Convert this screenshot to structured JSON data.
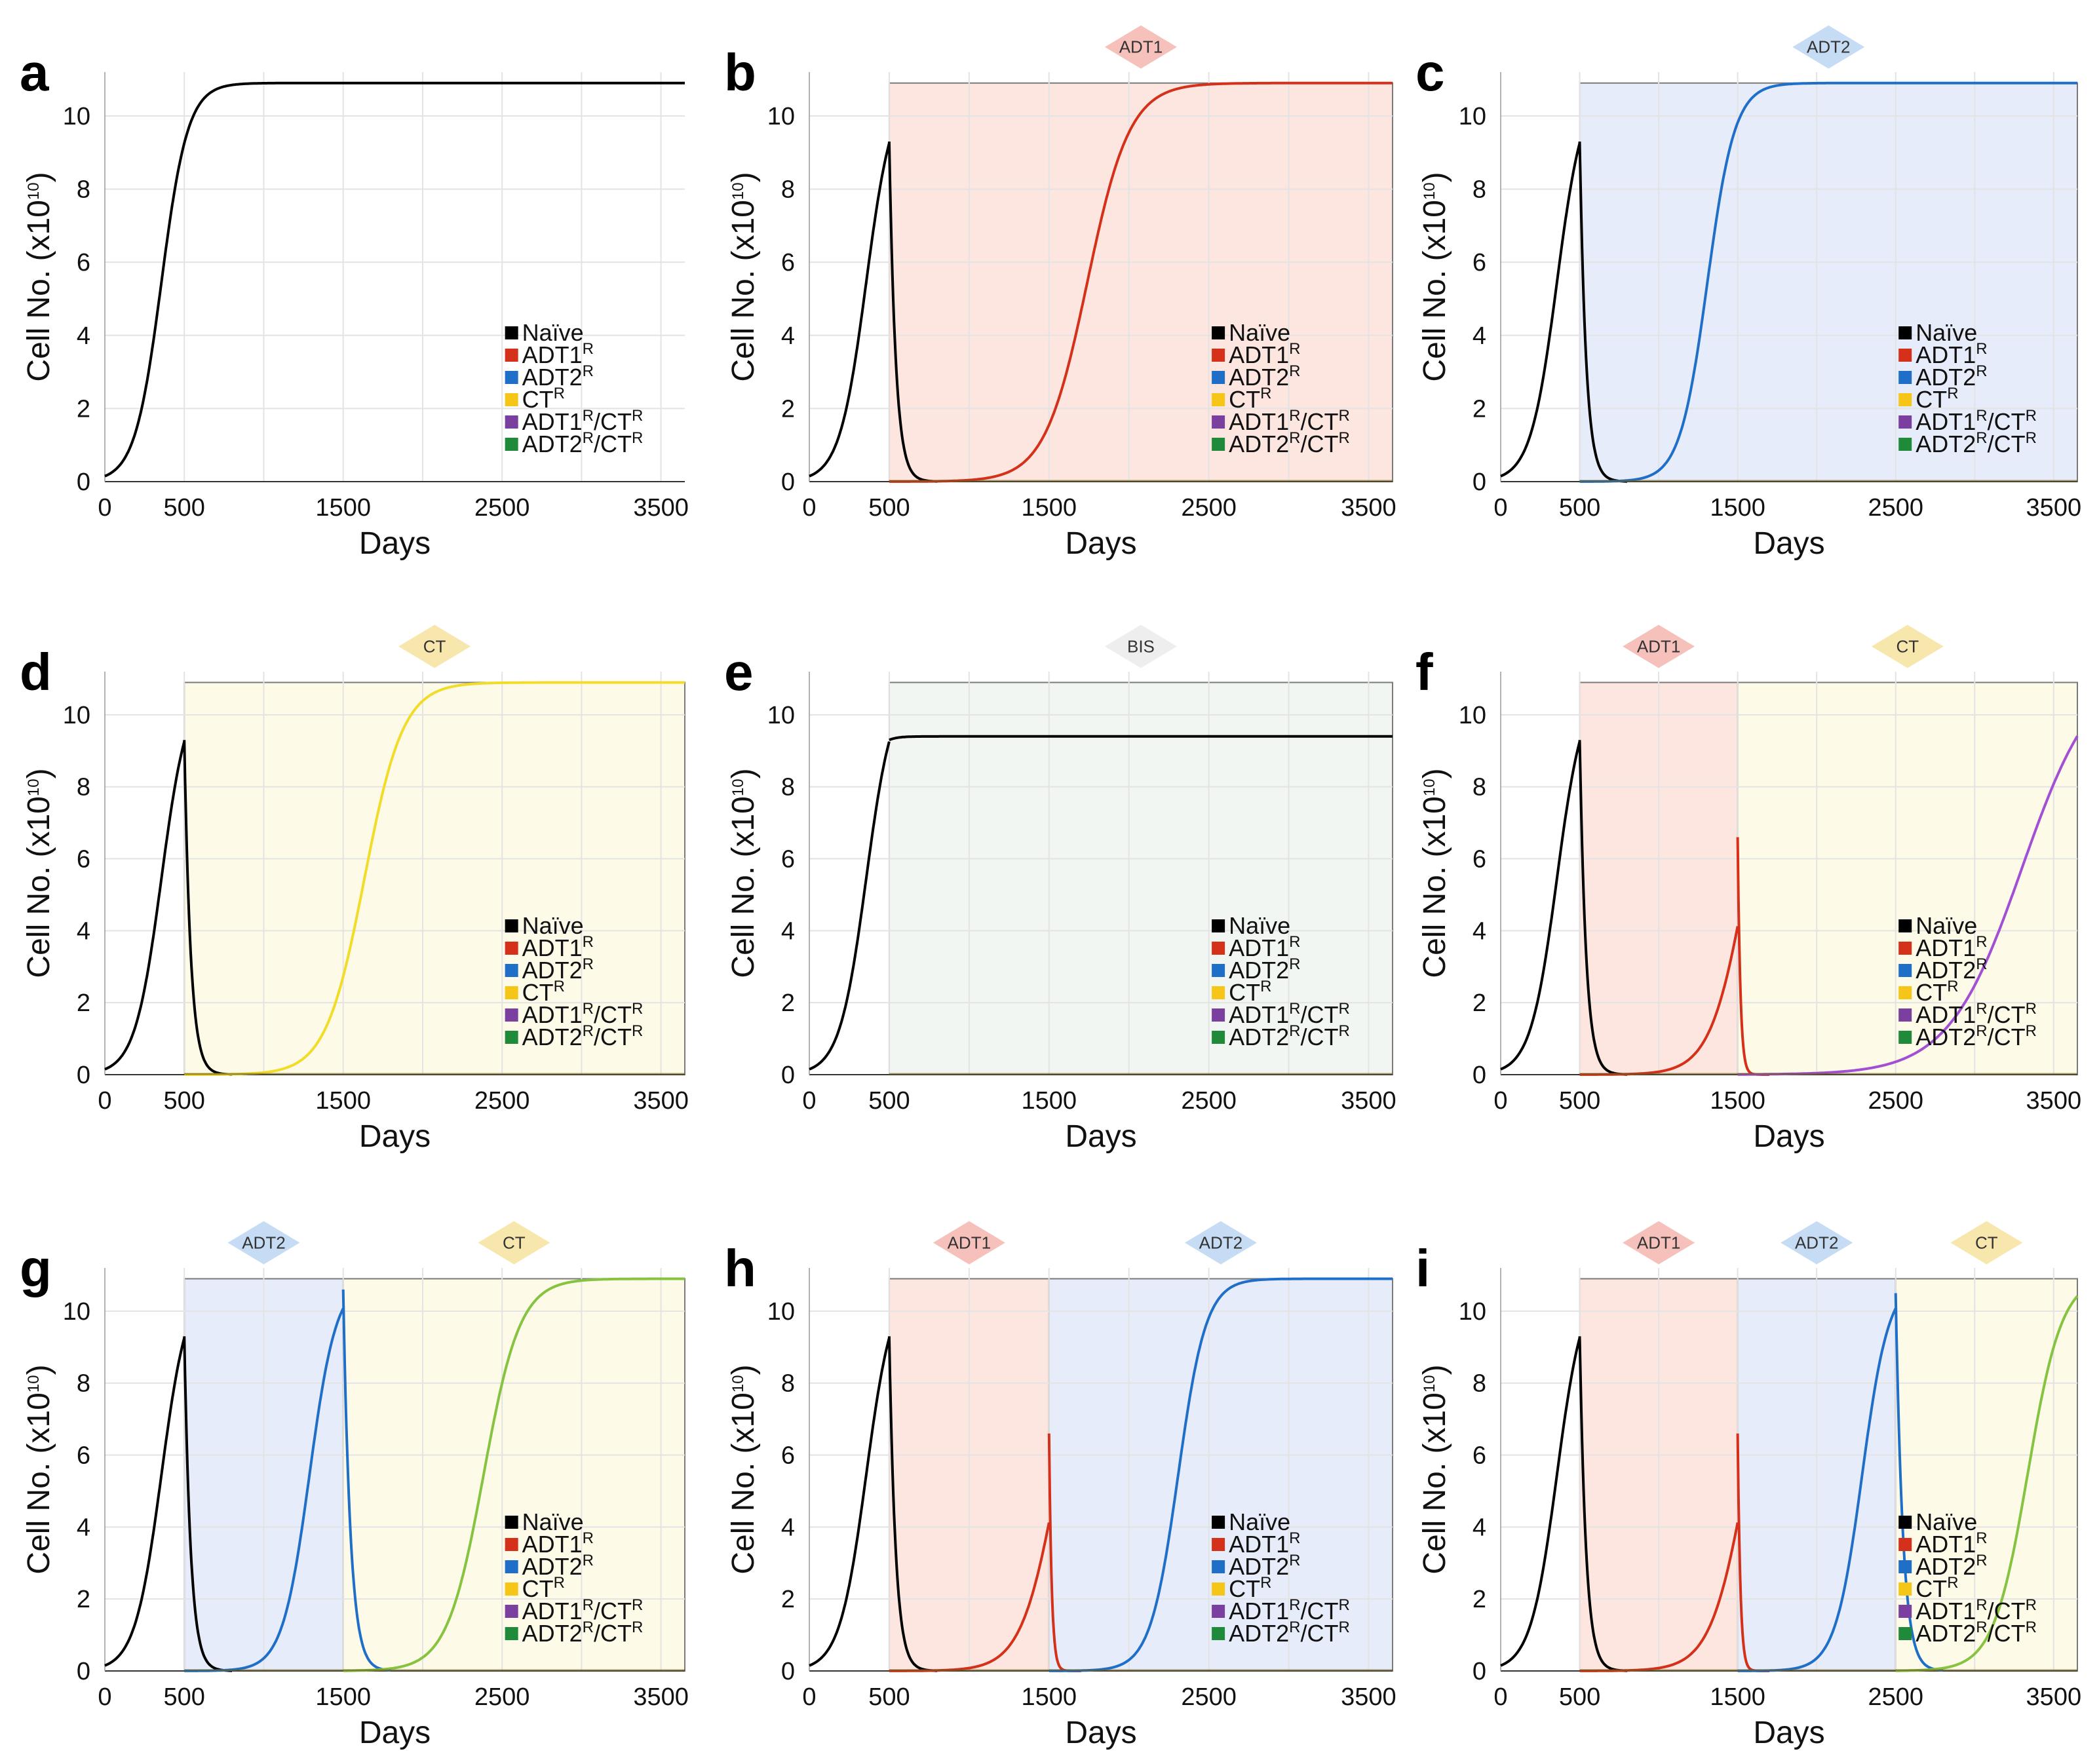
{
  "figure": {
    "background": "#ffffff"
  },
  "series_colors": {
    "naive": "#000000",
    "adt1r": "#d4301a",
    "adt2r": "#1f6fc9",
    "ctr": "#f2dc2a",
    "adt1r_ctr": "#a34fd4",
    "adt2r_ctr": "#86c340"
  },
  "legend_markers": {
    "naive": "#000000",
    "adt1r": "#d4301a",
    "adt2r": "#1f6fc9",
    "ctr": "#f5c518",
    "adt1r_ctr": "#7b3fa0",
    "adt2r_ctr": "#1e8a3a"
  },
  "phase_fills": {
    "ADT1": "#fde6df",
    "ADT2": "#e6ecf9",
    "CT": "#fdfbe8",
    "BIS": "#f2f6f3"
  },
  "badge_colors": {
    "ADT1": "#f7c1bb",
    "ADT2": "#c6dcf5",
    "CT": "#f8e7ad",
    "BIS": "#eeeeee"
  },
  "legend": {
    "entries": [
      {
        "base": "Naïve",
        "sup": "",
        "mid": "",
        "sup2": "",
        "key": "naive"
      },
      {
        "base": "ADT1",
        "sup": "R",
        "mid": "",
        "sup2": "",
        "key": "adt1r"
      },
      {
        "base": "ADT2",
        "sup": "R",
        "mid": "",
        "sup2": "",
        "key": "adt2r"
      },
      {
        "base": "CT",
        "sup": "R",
        "mid": "",
        "sup2": "",
        "key": "ctr"
      },
      {
        "base": "ADT1",
        "sup": "R",
        "mid": "/CT",
        "sup2": "R",
        "key": "adt1r_ctr"
      },
      {
        "base": "ADT2",
        "sup": "R",
        "mid": "/CT",
        "sup2": "R",
        "key": "adt2r_ctr"
      }
    ]
  },
  "chart_data": [
    {
      "panel": "a",
      "type": "line",
      "xlabel": "Days",
      "ylabel": "Cell No. (x10",
      "ylabel_sup": "10",
      "ylabel_end": ")",
      "x_ticks": [
        0,
        500,
        1500,
        2500,
        3500
      ],
      "y_ticks": [
        0,
        2,
        4,
        6,
        8,
        10
      ],
      "xlim": [
        0,
        3650
      ],
      "ylim": [
        0,
        11.2
      ],
      "phases": [],
      "series": [
        {
          "name": "Naïve",
          "color_key": "naive",
          "segments": [
            {
              "type": "logistic",
              "t0": 0,
              "t1": 3650,
              "y0": 0.15,
              "r": 0.012,
              "K": 10.9
            }
          ]
        }
      ]
    },
    {
      "panel": "b",
      "type": "line",
      "xlabel": "Days",
      "ylabel": "Cell No. (x10",
      "ylabel_sup": "10",
      "ylabel_end": ")",
      "x_ticks": [
        0,
        500,
        1500,
        2500,
        3500
      ],
      "y_ticks": [
        0,
        2,
        4,
        6,
        8,
        10
      ],
      "xlim": [
        0,
        3650
      ],
      "ylim": [
        0,
        11.2
      ],
      "phases": [
        {
          "label": "ADT1",
          "start": 500,
          "end": 3650
        }
      ],
      "series": [
        {
          "name": "Naïve",
          "color_key": "naive",
          "segments": [
            {
              "type": "logistic",
              "t0": 0,
              "t1": 500,
              "y0": 0.15,
              "r": 0.012,
              "K": 10.9
            },
            {
              "type": "decay",
              "t0": 500,
              "t1": 800,
              "y0": 9.3,
              "d": 0.025
            }
          ]
        },
        {
          "name": "ADT1R",
          "color_key": "adt1r",
          "segments": [
            {
              "type": "logistic",
              "t0": 500,
              "t1": 3650,
              "y0": 0.001,
              "r": 0.0075,
              "K": 10.9
            }
          ]
        }
      ]
    },
    {
      "panel": "c",
      "type": "line",
      "xlabel": "Days",
      "ylabel": "Cell No. (x10",
      "ylabel_sup": "10",
      "ylabel_end": ")",
      "x_ticks": [
        0,
        500,
        1500,
        2500,
        3500
      ],
      "y_ticks": [
        0,
        2,
        4,
        6,
        8,
        10
      ],
      "xlim": [
        0,
        3650
      ],
      "ylim": [
        0,
        11.2
      ],
      "phases": [
        {
          "label": "ADT2",
          "start": 500,
          "end": 3650
        }
      ],
      "series": [
        {
          "name": "Naïve",
          "color_key": "naive",
          "segments": [
            {
              "type": "logistic",
              "t0": 0,
              "t1": 500,
              "y0": 0.15,
              "r": 0.012,
              "K": 10.9
            },
            {
              "type": "decay",
              "t0": 500,
              "t1": 800,
              "y0": 9.3,
              "d": 0.025
            }
          ]
        },
        {
          "name": "ADT2R",
          "color_key": "adt2r",
          "segments": [
            {
              "type": "logistic",
              "t0": 500,
              "t1": 3650,
              "y0": 0.001,
              "r": 0.0115,
              "K": 10.9
            }
          ]
        }
      ]
    },
    {
      "panel": "d",
      "type": "line",
      "xlabel": "Days",
      "ylabel": "Cell No. (x10",
      "ylabel_sup": "10",
      "ylabel_end": ")",
      "x_ticks": [
        0,
        500,
        1500,
        2500,
        3500
      ],
      "y_ticks": [
        0,
        2,
        4,
        6,
        8,
        10
      ],
      "xlim": [
        0,
        3650
      ],
      "ylim": [
        0,
        11.2
      ],
      "phases": [
        {
          "label": "CT",
          "start": 500,
          "end": 3650
        }
      ],
      "series": [
        {
          "name": "Naïve",
          "color_key": "naive",
          "segments": [
            {
              "type": "logistic",
              "t0": 0,
              "t1": 500,
              "y0": 0.15,
              "r": 0.012,
              "K": 10.9
            },
            {
              "type": "decay",
              "t0": 500,
              "t1": 800,
              "y0": 9.3,
              "d": 0.025
            }
          ]
        },
        {
          "name": "CTR",
          "color_key": "ctr",
          "segments": [
            {
              "type": "logistic",
              "t0": 500,
              "t1": 3650,
              "y0": 0.001,
              "r": 0.0082,
              "K": 10.9
            }
          ]
        }
      ]
    },
    {
      "panel": "e",
      "type": "line",
      "xlabel": "Days",
      "ylabel": "Cell No. (x10",
      "ylabel_sup": "10",
      "ylabel_end": ")",
      "x_ticks": [
        0,
        500,
        1500,
        2500,
        3500
      ],
      "y_ticks": [
        0,
        2,
        4,
        6,
        8,
        10
      ],
      "xlim": [
        0,
        3650
      ],
      "ylim": [
        0,
        11.2
      ],
      "phases": [
        {
          "label": "BIS",
          "start": 500,
          "end": 3650
        }
      ],
      "series": [
        {
          "name": "Naïve",
          "color_key": "naive",
          "segments": [
            {
              "type": "logistic",
              "t0": 0,
              "t1": 500,
              "y0": 0.15,
              "r": 0.012,
              "K": 10.9
            },
            {
              "type": "relax",
              "t0": 500,
              "t1": 3650,
              "y0": 9.3,
              "target": 9.4,
              "k": 0.02
            }
          ]
        }
      ]
    },
    {
      "panel": "f",
      "type": "line",
      "xlabel": "Days",
      "ylabel": "Cell No. (x10",
      "ylabel_sup": "10",
      "ylabel_end": ")",
      "x_ticks": [
        0,
        500,
        1500,
        2500,
        3500
      ],
      "y_ticks": [
        0,
        2,
        4,
        6,
        8,
        10
      ],
      "xlim": [
        0,
        3650
      ],
      "ylim": [
        0,
        11.2
      ],
      "phases": [
        {
          "label": "ADT1",
          "start": 500,
          "end": 1500
        },
        {
          "label": "CT",
          "start": 1500,
          "end": 3650
        }
      ],
      "series": [
        {
          "name": "Naïve",
          "color_key": "naive",
          "segments": [
            {
              "type": "logistic",
              "t0": 0,
              "t1": 500,
              "y0": 0.15,
              "r": 0.012,
              "K": 10.9
            },
            {
              "type": "decay",
              "t0": 500,
              "t1": 800,
              "y0": 9.3,
              "d": 0.025
            }
          ]
        },
        {
          "name": "ADT1R",
          "color_key": "adt1r",
          "segments": [
            {
              "type": "logistic",
              "t0": 500,
              "t1": 1500,
              "y0": 0.001,
              "r": 0.0088,
              "K": 10.9
            },
            {
              "type": "decay",
              "t0": 1500,
              "t1": 1700,
              "y0": 6.6,
              "d": 0.06
            }
          ]
        },
        {
          "name": "ADT1R/CTR",
          "color_key": "adt1r_ctr",
          "segments": [
            {
              "type": "logistic",
              "t0": 1500,
              "t1": 3650,
              "y0": 0.005,
              "r": 0.0043,
              "K": 11.5
            }
          ]
        }
      ]
    },
    {
      "panel": "g",
      "type": "line",
      "xlabel": "Days",
      "ylabel": "Cell No. (x10",
      "ylabel_sup": "10",
      "ylabel_end": ")",
      "x_ticks": [
        0,
        500,
        1500,
        2500,
        3500
      ],
      "y_ticks": [
        0,
        2,
        4,
        6,
        8,
        10
      ],
      "xlim": [
        0,
        3650
      ],
      "ylim": [
        0,
        11.2
      ],
      "phases": [
        {
          "label": "ADT2",
          "start": 500,
          "end": 1500
        },
        {
          "label": "CT",
          "start": 1500,
          "end": 3650
        }
      ],
      "series": [
        {
          "name": "Naïve",
          "color_key": "naive",
          "segments": [
            {
              "type": "logistic",
              "t0": 0,
              "t1": 500,
              "y0": 0.15,
              "r": 0.012,
              "K": 10.9
            },
            {
              "type": "decay",
              "t0": 500,
              "t1": 800,
              "y0": 9.3,
              "d": 0.025
            }
          ]
        },
        {
          "name": "ADT2R",
          "color_key": "adt2r",
          "segments": [
            {
              "type": "logistic",
              "t0": 500,
              "t1": 1500,
              "y0": 0.001,
              "r": 0.0118,
              "K": 10.9
            },
            {
              "type": "decay",
              "t0": 1500,
              "t1": 1800,
              "y0": 10.6,
              "d": 0.022
            }
          ]
        },
        {
          "name": "ADT2R/CTR",
          "color_key": "adt2r_ctr",
          "segments": [
            {
              "type": "logistic",
              "t0": 1500,
              "t1": 3650,
              "y0": 0.005,
              "r": 0.0087,
              "K": 10.9
            }
          ]
        }
      ]
    },
    {
      "panel": "h",
      "type": "line",
      "xlabel": "Days",
      "ylabel": "Cell No. (x10",
      "ylabel_sup": "10",
      "ylabel_end": ")",
      "x_ticks": [
        0,
        500,
        1500,
        2500,
        3500
      ],
      "y_ticks": [
        0,
        2,
        4,
        6,
        8,
        10
      ],
      "xlim": [
        0,
        3650
      ],
      "ylim": [
        0,
        11.2
      ],
      "phases": [
        {
          "label": "ADT1",
          "start": 500,
          "end": 1500
        },
        {
          "label": "ADT2",
          "start": 1500,
          "end": 3650
        }
      ],
      "series": [
        {
          "name": "Naïve",
          "color_key": "naive",
          "segments": [
            {
              "type": "logistic",
              "t0": 0,
              "t1": 500,
              "y0": 0.15,
              "r": 0.012,
              "K": 10.9
            },
            {
              "type": "decay",
              "t0": 500,
              "t1": 800,
              "y0": 9.3,
              "d": 0.025
            }
          ]
        },
        {
          "name": "ADT1R",
          "color_key": "adt1r",
          "segments": [
            {
              "type": "logistic",
              "t0": 500,
              "t1": 1500,
              "y0": 0.001,
              "r": 0.0088,
              "K": 10.9
            },
            {
              "type": "decay",
              "t0": 1500,
              "t1": 1700,
              "y0": 6.6,
              "d": 0.06
            }
          ]
        },
        {
          "name": "ADT2R",
          "color_key": "adt2r",
          "segments": [
            {
              "type": "logistic",
              "t0": 1500,
              "t1": 3650,
              "y0": 0.001,
              "r": 0.0115,
              "K": 10.9
            }
          ]
        }
      ]
    },
    {
      "panel": "i",
      "type": "line",
      "xlabel": "Days",
      "ylabel": "Cell No. (x10",
      "ylabel_sup": "10",
      "ylabel_end": ")",
      "x_ticks": [
        0,
        500,
        1500,
        2500,
        3500
      ],
      "y_ticks": [
        0,
        2,
        4,
        6,
        8,
        10
      ],
      "xlim": [
        0,
        3650
      ],
      "ylim": [
        0,
        11.2
      ],
      "phases": [
        {
          "label": "ADT1",
          "start": 500,
          "end": 1500
        },
        {
          "label": "ADT2",
          "start": 1500,
          "end": 2500
        },
        {
          "label": "CT",
          "start": 2500,
          "end": 3650
        }
      ],
      "series": [
        {
          "name": "Naïve",
          "color_key": "naive",
          "segments": [
            {
              "type": "logistic",
              "t0": 0,
              "t1": 500,
              "y0": 0.15,
              "r": 0.012,
              "K": 10.9
            },
            {
              "type": "decay",
              "t0": 500,
              "t1": 800,
              "y0": 9.3,
              "d": 0.025
            }
          ]
        },
        {
          "name": "ADT1R",
          "color_key": "adt1r",
          "segments": [
            {
              "type": "logistic",
              "t0": 500,
              "t1": 1500,
              "y0": 0.001,
              "r": 0.0088,
              "K": 10.9
            },
            {
              "type": "decay",
              "t0": 1500,
              "t1": 1700,
              "y0": 6.6,
              "d": 0.06
            }
          ]
        },
        {
          "name": "ADT2R",
          "color_key": "adt2r",
          "segments": [
            {
              "type": "logistic",
              "t0": 1500,
              "t1": 2500,
              "y0": 0.001,
              "r": 0.0118,
              "K": 10.9
            },
            {
              "type": "decay",
              "t0": 2500,
              "t1": 2800,
              "y0": 10.5,
              "d": 0.022
            }
          ]
        },
        {
          "name": "ADT2R/CTR",
          "color_key": "adt2r_ctr",
          "segments": [
            {
              "type": "logistic",
              "t0": 2500,
              "t1": 3650,
              "y0": 0.005,
              "r": 0.0092,
              "K": 11.0
            }
          ]
        }
      ]
    }
  ]
}
